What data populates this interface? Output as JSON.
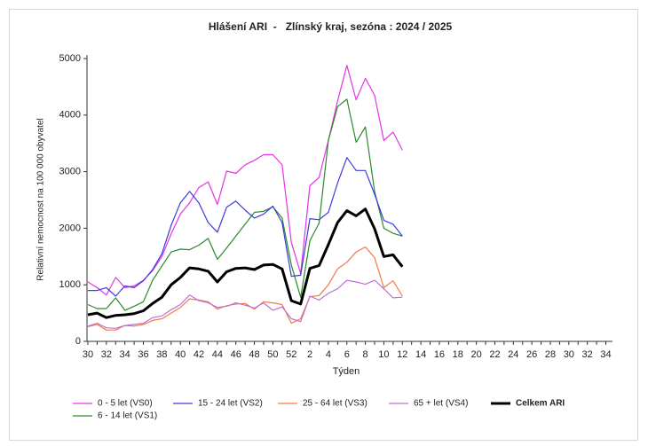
{
  "chart_data": {
    "type": "line",
    "title": "Hlášení ARI  -   Zlínský kraj, sezóna : 2024 / 2025",
    "x_label": "Týden",
    "y_label": "Relativní nemocnost na 100 000 obyvatel",
    "categories": [
      "30",
      null,
      "32",
      null,
      "34",
      null,
      "36",
      null,
      "38",
      null,
      "40",
      null,
      "42",
      null,
      "44",
      null,
      "46",
      null,
      "48",
      null,
      "50",
      null,
      "52",
      null,
      "2",
      null,
      "4",
      null,
      "6",
      null,
      "8",
      null,
      "10",
      null,
      "12",
      null,
      "14",
      null,
      "16",
      null,
      "18",
      null,
      "20",
      null,
      "22",
      null,
      "24",
      null,
      "26",
      null,
      "28",
      null,
      "30",
      null,
      "32",
      null,
      "34"
    ],
    "ylim": [
      0,
      5000
    ],
    "yticks": [
      0,
      1000,
      2000,
      3000,
      4000,
      5000
    ],
    "grid": false,
    "series": [
      {
        "name": "0 - 5 let (VS0)",
        "color": "#e633e6",
        "width": 1.2,
        "values": [
          1050,
          950,
          820,
          1130,
          950,
          980,
          1080,
          1250,
          1500,
          1900,
          2250,
          2450,
          2720,
          2820,
          2420,
          3010,
          2970,
          3120,
          3200,
          3300,
          3300,
          3120,
          1750,
          1200,
          2750,
          2900,
          3550,
          4250,
          4880,
          4270,
          4650,
          4350,
          3550,
          3700,
          3380,
          null,
          null,
          null,
          null,
          null,
          null,
          null,
          null,
          null,
          null,
          null,
          null,
          null,
          null,
          null,
          null,
          null,
          null,
          null,
          null,
          null,
          null
        ]
      },
      {
        "name": "6 - 14 let (VS1)",
        "color": "#2a8a2a",
        "width": 1.2,
        "values": [
          650,
          580,
          580,
          770,
          550,
          620,
          700,
          1080,
          1330,
          1580,
          1630,
          1620,
          1700,
          1820,
          1450,
          1650,
          1860,
          2070,
          2280,
          2300,
          2380,
          2180,
          1350,
          780,
          1780,
          2090,
          3550,
          4150,
          4280,
          3520,
          3790,
          2650,
          2000,
          1910,
          1860,
          null,
          null,
          null,
          null,
          null,
          null,
          null,
          null,
          null,
          null,
          null,
          null,
          null,
          null,
          null,
          null,
          null,
          null,
          null,
          null,
          null,
          null
        ]
      },
      {
        "name": "15 - 24 let (VS2)",
        "color": "#3a3ae0",
        "width": 1.2,
        "values": [
          900,
          900,
          950,
          800,
          980,
          950,
          1070,
          1270,
          1550,
          2050,
          2450,
          2650,
          2450,
          2100,
          1930,
          2370,
          2480,
          2320,
          2180,
          2250,
          2390,
          2100,
          1150,
          1170,
          2170,
          2150,
          2280,
          2800,
          3250,
          3020,
          3020,
          2600,
          2140,
          2070,
          1860,
          null,
          null,
          null,
          null,
          null,
          null,
          null,
          null,
          null,
          null,
          null,
          null,
          null,
          null,
          null,
          null,
          null,
          null,
          null,
          null,
          null,
          null
        ]
      },
      {
        "name": "25 - 64 let (VS3)",
        "color": "#f07a4a",
        "width": 1.2,
        "values": [
          260,
          300,
          200,
          200,
          280,
          270,
          300,
          370,
          400,
          500,
          600,
          750,
          730,
          700,
          570,
          630,
          660,
          670,
          570,
          700,
          680,
          650,
          320,
          400,
          790,
          810,
          1000,
          1280,
          1400,
          1580,
          1670,
          1480,
          950,
          1070,
          800,
          null,
          null,
          null,
          null,
          null,
          null,
          null,
          null,
          null,
          null,
          null,
          null,
          null,
          null,
          null,
          null,
          null,
          null,
          null,
          null,
          null,
          null
        ]
      },
      {
        "name": "65 + let (VS4)",
        "color": "#c070d0",
        "width": 1.2,
        "values": [
          270,
          320,
          240,
          230,
          280,
          300,
          320,
          420,
          450,
          560,
          650,
          820,
          720,
          680,
          600,
          620,
          680,
          640,
          590,
          680,
          550,
          610,
          400,
          350,
          800,
          730,
          850,
          930,
          1080,
          1050,
          1010,
          1080,
          930,
          770,
          780,
          null,
          null,
          null,
          null,
          null,
          null,
          null,
          null,
          null,
          null,
          null,
          null,
          null,
          null,
          null,
          null,
          null,
          null,
          null,
          null,
          null,
          null
        ]
      },
      {
        "name": "Celkem ARI",
        "color": "#000000",
        "width": 3,
        "values": [
          470,
          500,
          420,
          460,
          470,
          490,
          540,
          670,
          780,
          1000,
          1130,
          1300,
          1280,
          1240,
          1050,
          1230,
          1290,
          1300,
          1270,
          1350,
          1360,
          1280,
          720,
          660,
          1290,
          1340,
          1710,
          2100,
          2310,
          2220,
          2340,
          1990,
          1500,
          1530,
          1320,
          null,
          null,
          null,
          null,
          null,
          null,
          null,
          null,
          null,
          null,
          null,
          null,
          null,
          null,
          null,
          null,
          null,
          null,
          null,
          null,
          null,
          null
        ]
      }
    ]
  }
}
